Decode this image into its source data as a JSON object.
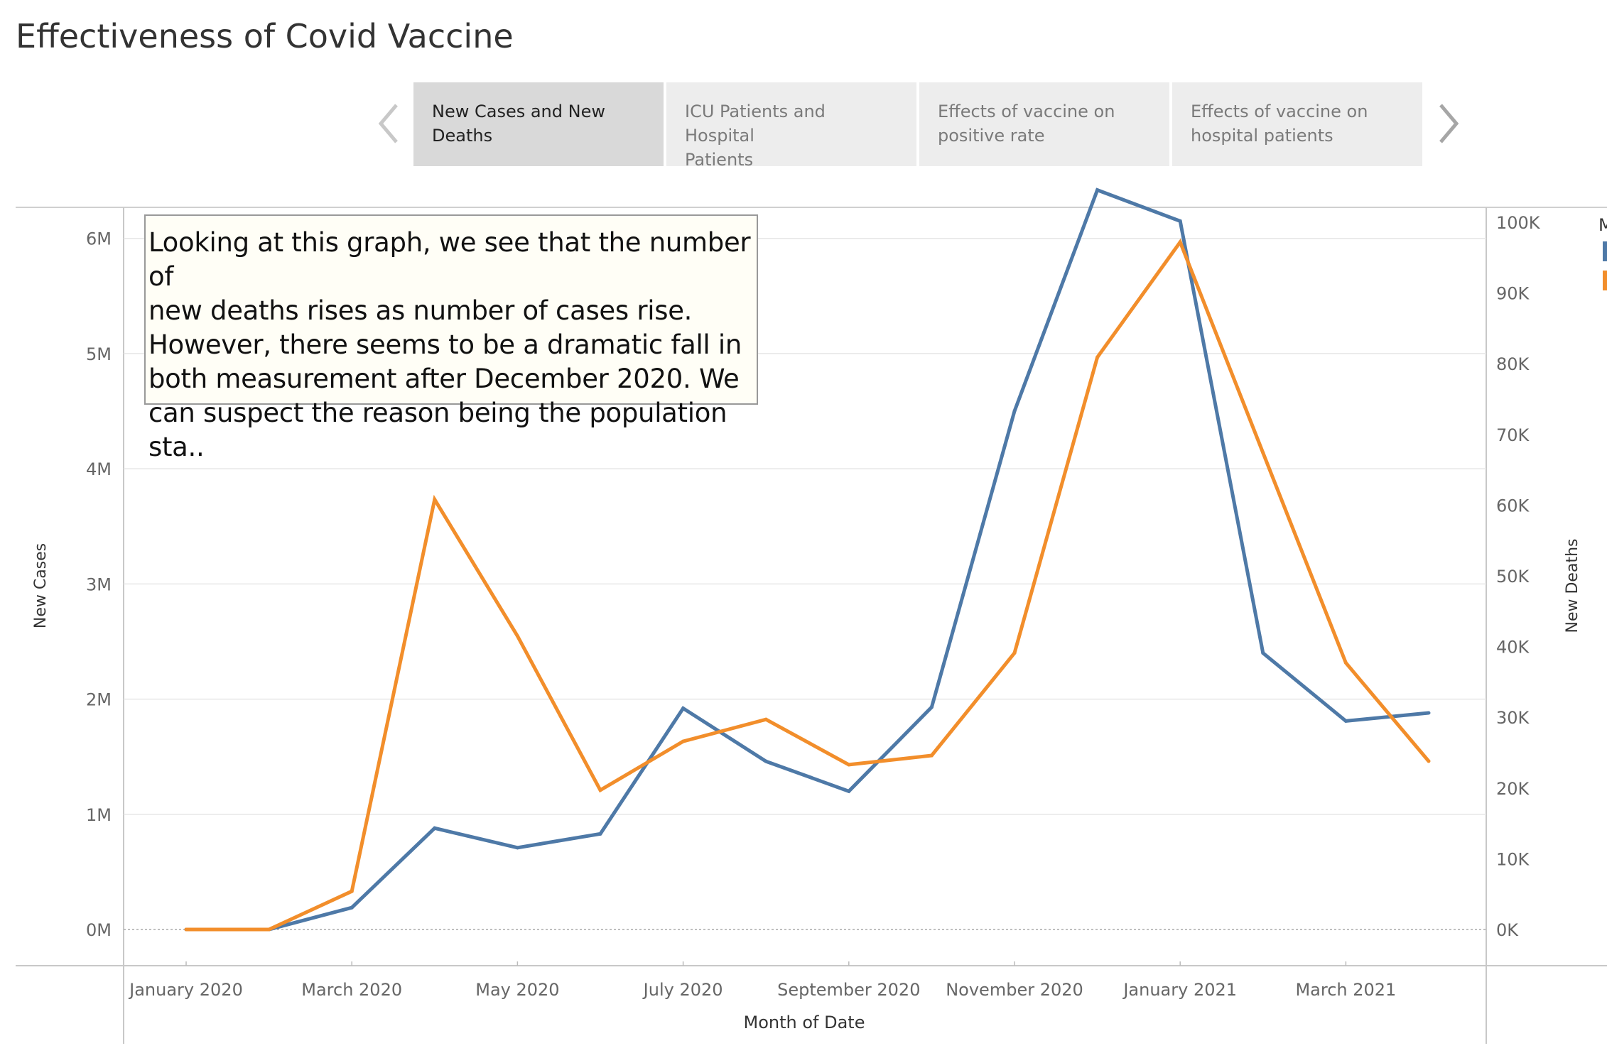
{
  "page": {
    "title": "Effectiveness of Covid Vaccine"
  },
  "story_nav": {
    "prev_icon": "chevron-left-icon",
    "next_icon": "chevron-right-icon",
    "tabs": [
      {
        "label_line1": "New Cases and New",
        "label_line2": "Deaths",
        "active": true
      },
      {
        "label_line1": "ICU Patients and Hospital",
        "label_line2": "Patients",
        "active": false
      },
      {
        "label_line1": "Effects of vaccine on",
        "label_line2": "positive rate",
        "active": false
      },
      {
        "label_line1": "Effects of vaccine on",
        "label_line2": "hospital patients",
        "active": false
      }
    ]
  },
  "annotation": {
    "lines": [
      "Looking at this graph, we see that the number of",
      "new deaths rises as number of cases rise.",
      "However, there seems to be a dramatic fall in",
      "both measurement after December 2020. We",
      "can suspect the reason being the population sta.."
    ]
  },
  "legend": {
    "title_fragment": "M"
  },
  "colors": {
    "new_cases": "#4e79a7",
    "new_deaths": "#f28e2b",
    "grid": "#e6e6e6",
    "axis_text": "#666666"
  },
  "chart_data": {
    "type": "line",
    "title": "",
    "xlabel": "Month of Date",
    "ylabel": "New Cases",
    "y2label": "New Deaths",
    "x": [
      "2020-01",
      "2020-02",
      "2020-03",
      "2020-04",
      "2020-05",
      "2020-06",
      "2020-07",
      "2020-08",
      "2020-09",
      "2020-10",
      "2020-11",
      "2020-12",
      "2021-01",
      "2021-02",
      "2021-03",
      "2021-04"
    ],
    "x_tick_labels": [
      "January 2020",
      "March 2020",
      "May 2020",
      "July 2020",
      "September 2020",
      "November 2020",
      "January 2021",
      "March 2021"
    ],
    "x_tick_months": [
      "2020-01",
      "2020-03",
      "2020-05",
      "2020-07",
      "2020-09",
      "2020-11",
      "2021-01",
      "2021-03"
    ],
    "ylim": [
      0,
      6500000
    ],
    "y_ticks": [
      0,
      1000000,
      2000000,
      3000000,
      4000000,
      5000000,
      6000000
    ],
    "y_tick_labels": [
      "0M",
      "1M",
      "2M",
      "3M",
      "4M",
      "5M",
      "6M"
    ],
    "y2lim": [
      0,
      100000
    ],
    "y2_ticks": [
      0,
      10000,
      20000,
      30000,
      40000,
      50000,
      60000,
      70000,
      80000,
      90000,
      100000
    ],
    "y2_tick_labels": [
      "0K",
      "10K",
      "20K",
      "30K",
      "40K",
      "50K",
      "60K",
      "70K",
      "80K",
      "90K",
      "100K"
    ],
    "grid": true,
    "legend_position": "right",
    "series": [
      {
        "key": "new_cases",
        "axis": "left",
        "values": [
          0,
          0,
          190000,
          880000,
          710000,
          830000,
          1920000,
          1460000,
          1200000,
          1930000,
          4500000,
          6420000,
          6150000,
          2400000,
          1810000,
          1880000
        ]
      },
      {
        "key": "new_deaths",
        "axis": "right",
        "values": [
          0,
          0,
          5400,
          60800,
          41500,
          19700,
          26600,
          29700,
          23300,
          24600,
          39100,
          80900,
          97200,
          67400,
          37700,
          23800
        ]
      }
    ]
  }
}
